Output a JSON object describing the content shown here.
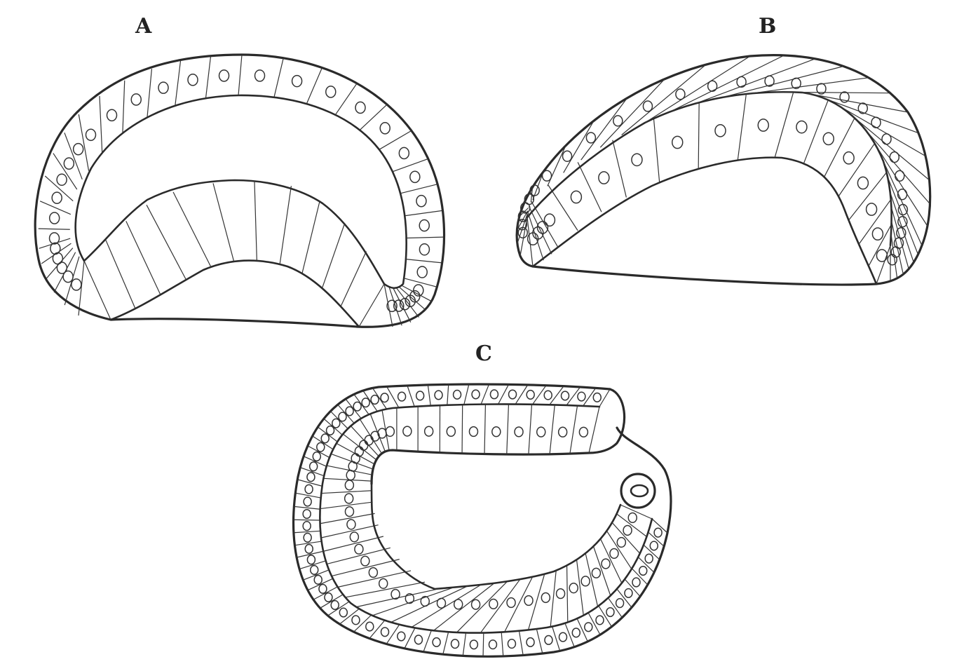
{
  "figure": {
    "panels": [
      {
        "id": "a",
        "label": "A"
      },
      {
        "id": "b",
        "label": "B"
      },
      {
        "id": "c",
        "label": "C"
      }
    ],
    "colors": {
      "line": "#2a2a2a",
      "background": "#ffffff"
    }
  }
}
